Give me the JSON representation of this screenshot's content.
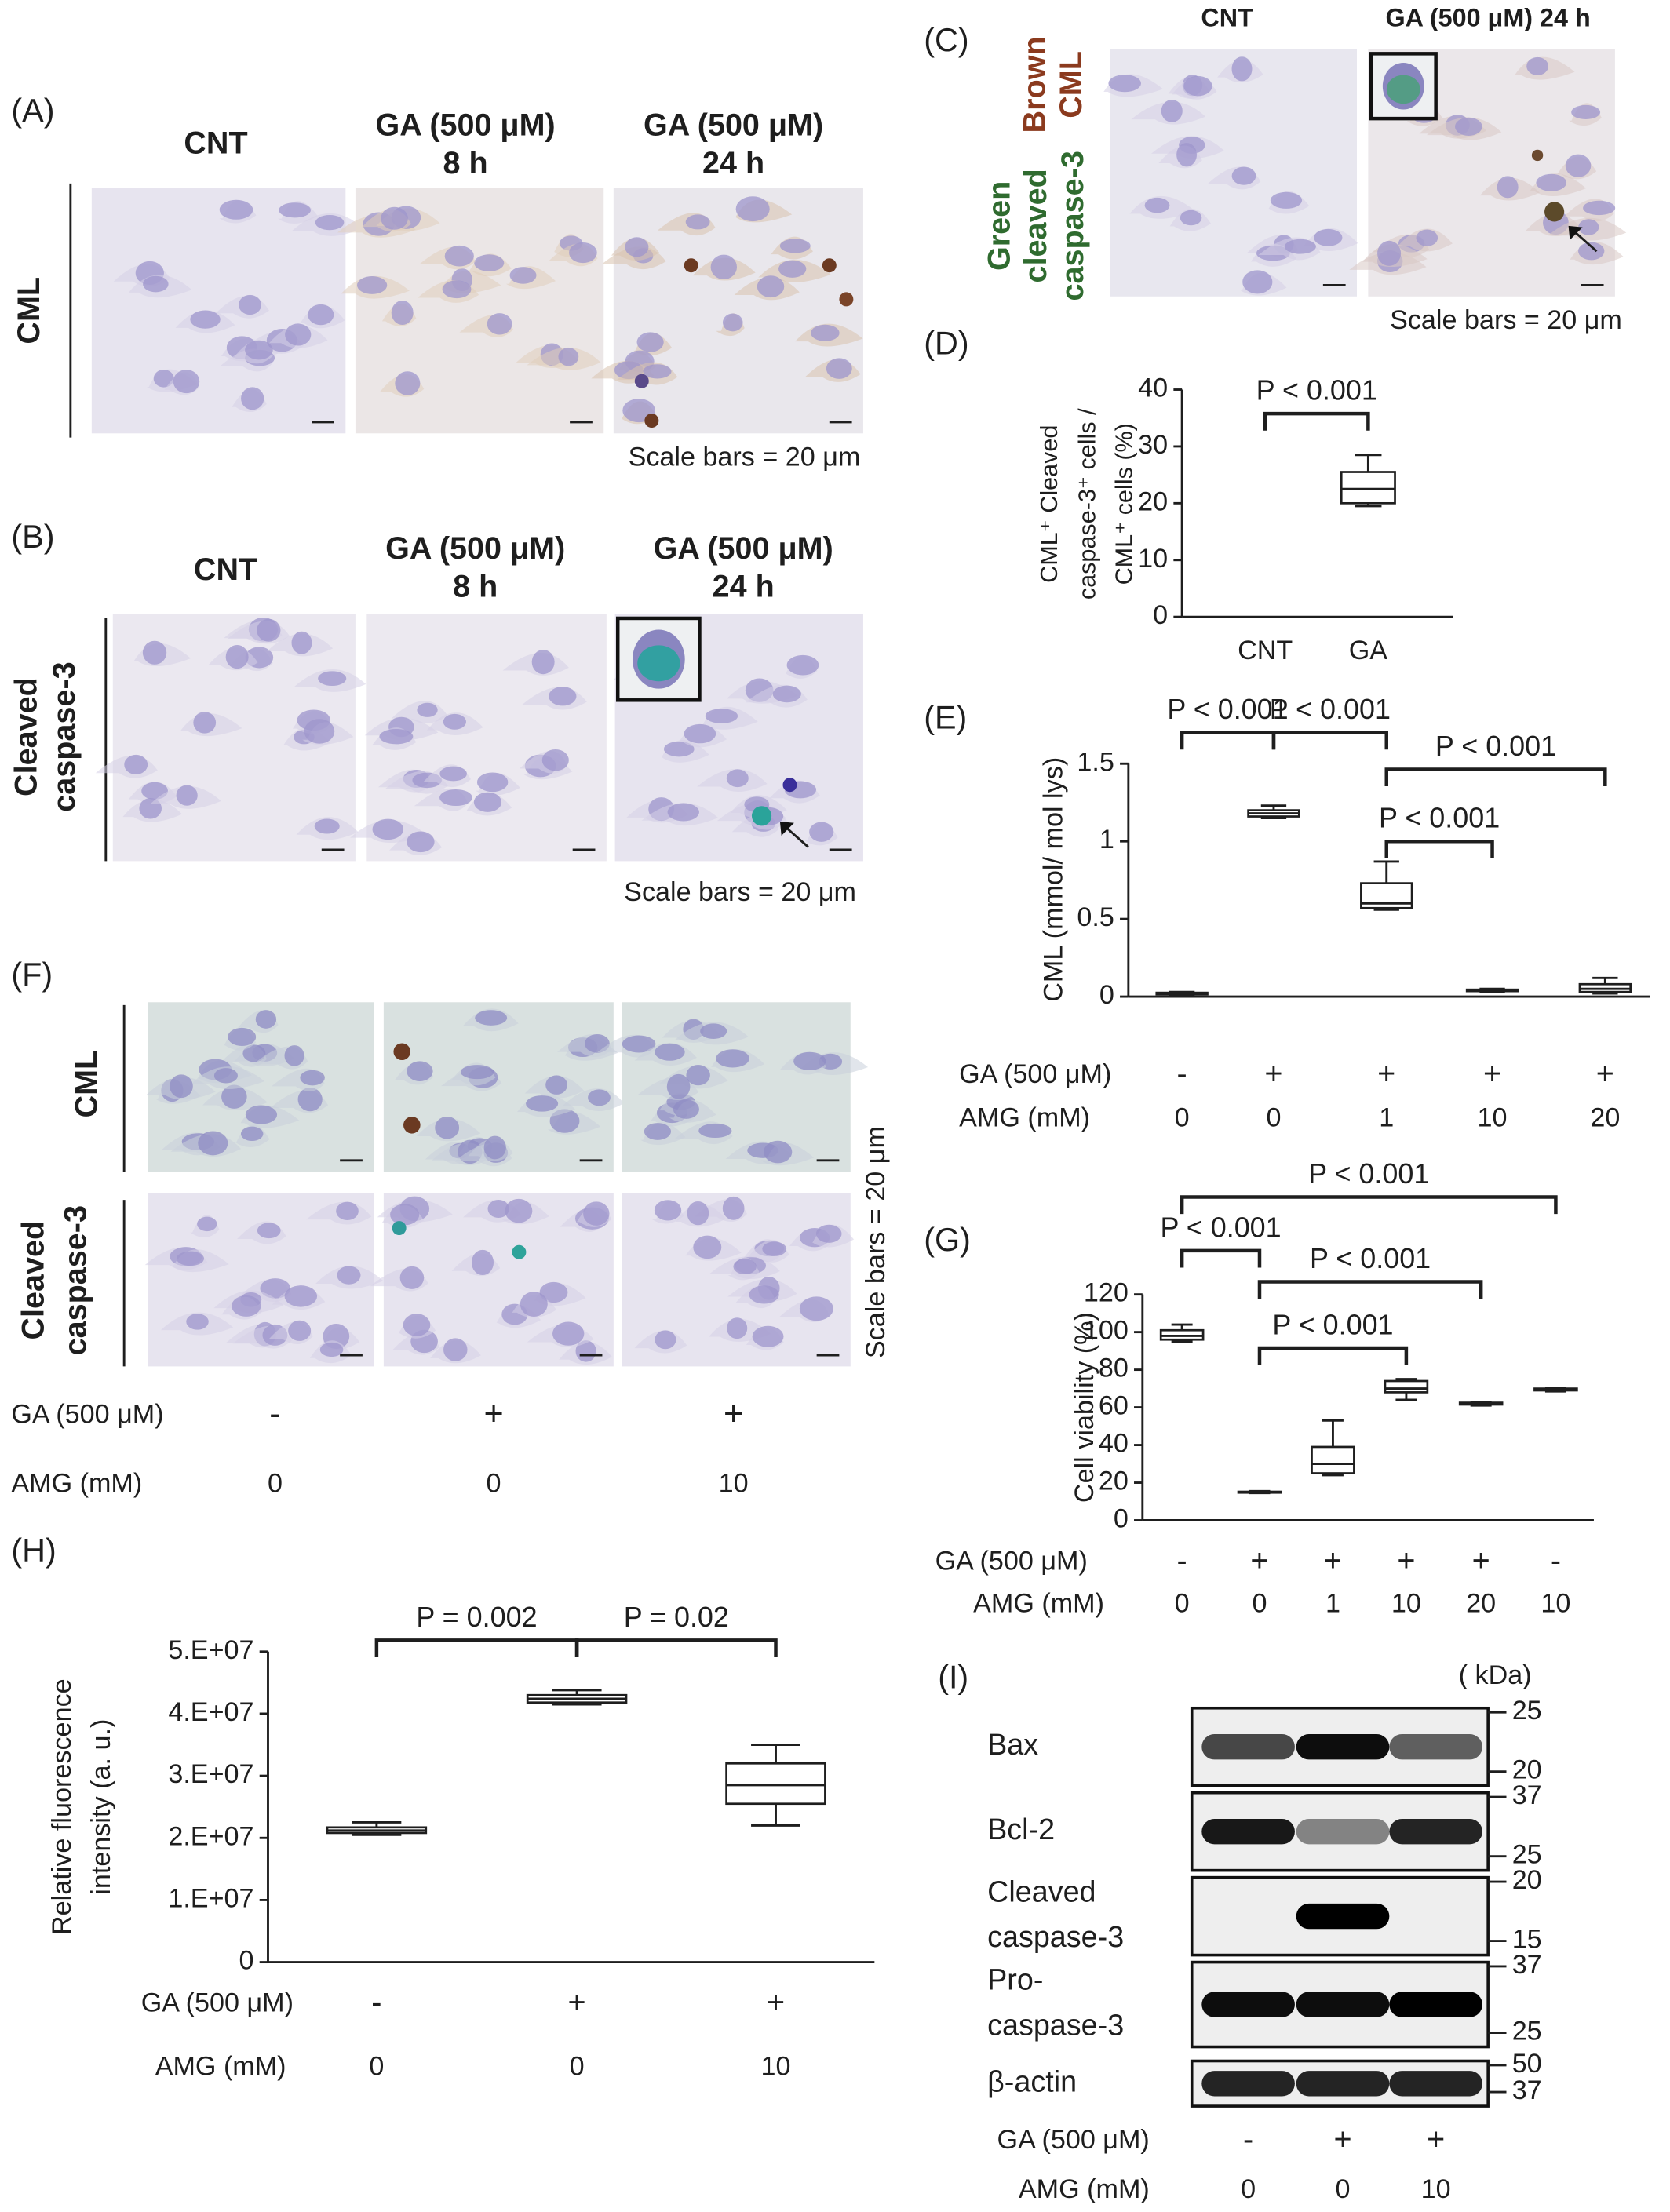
{
  "micrographs": {
    "A": {
      "label": "(A)",
      "columns": [
        [
          "CNT"
        ],
        [
          "GA (500 μM)",
          "8 h"
        ],
        [
          "GA (500 μM)",
          "24 h"
        ]
      ],
      "rows": [
        [
          "CML"
        ]
      ],
      "scale_bar": "Scale bars = 20 μm"
    },
    "B": {
      "label": "(B)",
      "columns": [
        [
          "CNT"
        ],
        [
          "GA (500 μM)",
          "8 h"
        ],
        [
          "GA (500 μM)",
          "24 h"
        ]
      ],
      "rows": [
        [
          "Cleaved",
          "caspase-3"
        ]
      ],
      "scale_bar": "Scale bars = 20 μm"
    },
    "C": {
      "label": "(C)",
      "columns": [
        [
          "CNT"
        ],
        [
          "GA (500 μM) 24 h"
        ]
      ],
      "stain_labels": [
        [
          "Brown",
          "CML"
        ],
        [
          "Green",
          "cleaved",
          "caspase-3"
        ]
      ],
      "scale_bar": "Scale bars = 20 μm"
    },
    "F": {
      "label": "(F)",
      "rows": [
        [
          "CML"
        ],
        [
          "Cleaved",
          "caspase-3"
        ]
      ],
      "scale_bar": "Scale bars = 20 μm",
      "conditions": [
        {
          "name": "GA  (500 μM)",
          "values": [
            "-",
            "+",
            "+"
          ]
        },
        {
          "name": "AMG (mM)",
          "values": [
            0,
            0,
            10
          ]
        }
      ]
    }
  },
  "chart_data": [
    {
      "type": "box",
      "label": "(D)",
      "y_label": [
        "CML⁺ Cleaved",
        "caspase-3⁺ cells /",
        "CML⁺ cells (%)"
      ],
      "categories": [
        "CNT",
        "GA"
      ],
      "ylim": [
        0,
        40
      ],
      "yticks": [
        0,
        10,
        20,
        30,
        40
      ],
      "values": [
        null,
        {
          "min": 19.5,
          "q1": 20,
          "median": 22.5,
          "q3": 25.5,
          "max": 28.5
        }
      ],
      "comparisons": [
        {
          "groups": [
            0,
            1
          ],
          "label": "P < 0.001"
        }
      ]
    },
    {
      "type": "box",
      "label": "(E)",
      "y_label": [
        "CML (mmol/ mol lys)"
      ],
      "condition_rows": [
        {
          "name": "GA (500 μM)",
          "values": [
            "-",
            "+",
            "+",
            "+",
            "+"
          ]
        },
        {
          "name": "AMG (mM)",
          "values": [
            0,
            0,
            1,
            10,
            20
          ]
        }
      ],
      "ylim": [
        0,
        1.5
      ],
      "yticks": [
        0,
        0.5,
        1,
        1.5
      ],
      "values": [
        {
          "min": 0.01,
          "q1": 0.015,
          "median": 0.02,
          "q3": 0.025,
          "max": 0.03
        },
        {
          "min": 1.15,
          "q1": 1.16,
          "median": 1.18,
          "q3": 1.2,
          "max": 1.23
        },
        {
          "min": 0.56,
          "q1": 0.57,
          "median": 0.6,
          "q3": 0.73,
          "max": 0.87
        },
        {
          "min": 0.03,
          "q1": 0.035,
          "median": 0.04,
          "q3": 0.045,
          "max": 0.05
        },
        {
          "min": 0.02,
          "q1": 0.03,
          "median": 0.05,
          "q3": 0.08,
          "max": 0.12
        }
      ],
      "comparisons": [
        {
          "groups": [
            0,
            1
          ],
          "label": "P < 0.001"
        },
        {
          "groups": [
            1,
            2
          ],
          "label": "P < 0.001"
        },
        {
          "groups": [
            2,
            4
          ],
          "label": "P < 0.001"
        },
        {
          "groups": [
            2,
            3
          ],
          "label": "P < 0.001"
        }
      ]
    },
    {
      "type": "box",
      "label": "(G)",
      "y_label": [
        "Cell viability (%)"
      ],
      "condition_rows": [
        {
          "name": "GA (500 μM)",
          "values": [
            "-",
            "+",
            "+",
            "+",
            "+",
            "-"
          ]
        },
        {
          "name": "AMG (mM)",
          "values": [
            0,
            0,
            1,
            10,
            20,
            10
          ]
        }
      ],
      "ylim": [
        0,
        120
      ],
      "yticks": [
        0,
        20,
        40,
        60,
        80,
        100,
        120
      ],
      "values": [
        {
          "min": 95,
          "q1": 96,
          "median": 98,
          "q3": 101,
          "max": 104
        },
        {
          "min": 14.5,
          "q1": 14.7,
          "median": 15,
          "q3": 15.2,
          "max": 15.5
        },
        {
          "min": 24,
          "q1": 25,
          "median": 30,
          "q3": 39,
          "max": 53
        },
        {
          "min": 64,
          "q1": 68,
          "median": 70,
          "q3": 74,
          "max": 75
        },
        {
          "min": 61,
          "q1": 61.5,
          "median": 62,
          "q3": 62.5,
          "max": 63
        },
        {
          "min": 68.5,
          "q1": 69,
          "median": 69.5,
          "q3": 70,
          "max": 70.5
        }
      ],
      "comparisons": [
        {
          "groups": [
            0,
            5
          ],
          "label": "P < 0.001"
        },
        {
          "groups": [
            0,
            1
          ],
          "label": "P < 0.001"
        },
        {
          "groups": [
            1,
            4
          ],
          "label": "P < 0.001"
        },
        {
          "groups": [
            1,
            3
          ],
          "label": "P < 0.001"
        }
      ]
    },
    {
      "type": "box",
      "label": "(H)",
      "y_label": [
        "Relative fluorescence",
        "intensity (a. u.)"
      ],
      "condition_rows": [
        {
          "name": "GA (500 μM)",
          "values": [
            "-",
            "+",
            "+"
          ]
        },
        {
          "name": "AMG (mM)",
          "values": [
            0,
            0,
            10
          ]
        }
      ],
      "ylim": [
        0,
        50000000
      ],
      "yticks": [
        0,
        {
          "value": 10000000,
          "label": "1.E+07"
        },
        {
          "value": 20000000,
          "label": "2.E+07"
        },
        {
          "value": 30000000,
          "label": "3.E+07"
        },
        {
          "value": 40000000,
          "label": "4.E+07"
        },
        {
          "value": 50000000,
          "label": "5.E+07"
        }
      ],
      "values": [
        {
          "min": 20500000,
          "q1": 20800000,
          "median": 21200000,
          "q3": 21700000,
          "max": 22500000
        },
        {
          "min": 41500000,
          "q1": 41800000,
          "median": 42400000,
          "q3": 43000000,
          "max": 43800000
        },
        {
          "min": 22000000,
          "q1": 25500000,
          "median": 28500000,
          "q3": 32000000,
          "max": 35000000
        }
      ],
      "comparisons": [
        {
          "groups": [
            0,
            1
          ],
          "label": "P = 0.002"
        },
        {
          "groups": [
            1,
            2
          ],
          "label": "P = 0.02"
        }
      ]
    }
  ],
  "western_blot": {
    "label": "(I)",
    "unit": "( kDa)",
    "rows": [
      {
        "name": [
          "Bax"
        ],
        "markers": [
          25,
          20
        ]
      },
      {
        "name": [
          "Bcl-2"
        ],
        "markers": [
          37,
          25
        ]
      },
      {
        "name": [
          "Cleaved",
          "caspase-3"
        ],
        "markers": [
          20,
          15
        ]
      },
      {
        "name": [
          "Pro-",
          "caspase-3"
        ],
        "markers": [
          37,
          25
        ]
      },
      {
        "name": [
          "β-actin"
        ],
        "markers": [
          50,
          37
        ]
      }
    ],
    "conditions": [
      {
        "name": "GA (500 μM)",
        "values": [
          "-",
          "+",
          "+"
        ]
      },
      {
        "name": "AMG (mM)",
        "values": [
          0,
          0,
          10
        ]
      }
    ]
  }
}
